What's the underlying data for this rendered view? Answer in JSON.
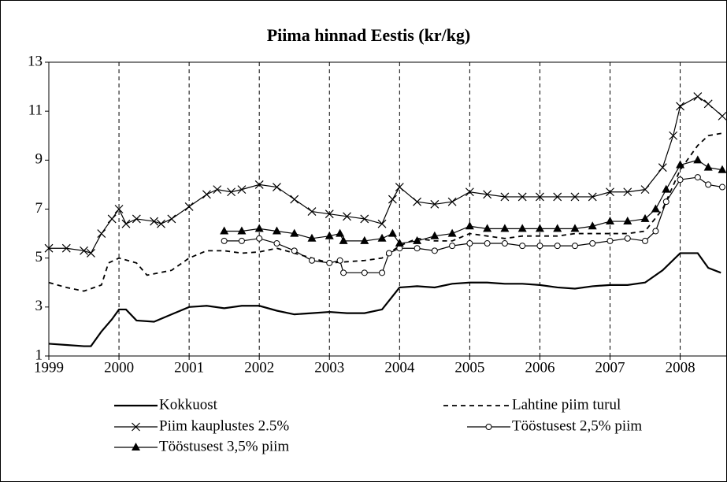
{
  "chart_data": {
    "type": "line",
    "title": "Piima hinnad Eestis (kr/kg)",
    "xlim": [
      1999,
      2008.6
    ],
    "xticks": [
      1999,
      2000,
      2001,
      2002,
      2003,
      2004,
      2005,
      2006,
      2007,
      2008
    ],
    "ylim": [
      1,
      13
    ],
    "yticks": [
      1,
      3,
      5,
      7,
      9,
      11,
      13
    ],
    "grid": "x",
    "legend": "bottom",
    "series": [
      {
        "name": "Kokkuost",
        "color": "#000000",
        "dash": "solid",
        "marker": "none",
        "x": [
          1999.0,
          1999.25,
          1999.5,
          1999.6,
          1999.75,
          1999.9,
          2000.0,
          2000.1,
          2000.25,
          2000.5,
          2000.75,
          2001.0,
          2001.25,
          2001.5,
          2001.75,
          2002.0,
          2002.25,
          2002.5,
          2002.75,
          2003.0,
          2003.25,
          2003.5,
          2003.75,
          2004.0,
          2004.25,
          2004.5,
          2004.75,
          2005.0,
          2005.25,
          2005.5,
          2005.75,
          2006.0,
          2006.25,
          2006.5,
          2006.75,
          2007.0,
          2007.25,
          2007.5,
          2007.75,
          2008.0,
          2008.25,
          2008.4,
          2008.58
        ],
        "values": [
          1.5,
          1.45,
          1.4,
          1.4,
          2.0,
          2.5,
          2.9,
          2.9,
          2.45,
          2.4,
          2.7,
          3.0,
          3.05,
          2.95,
          3.05,
          3.05,
          2.85,
          2.7,
          2.75,
          2.8,
          2.75,
          2.75,
          2.9,
          3.8,
          3.85,
          3.8,
          3.95,
          4.0,
          4.0,
          3.95,
          3.95,
          3.9,
          3.8,
          3.75,
          3.85,
          3.9,
          3.9,
          4.0,
          4.5,
          5.2,
          5.2,
          4.6,
          4.4
        ]
      },
      {
        "name": "Lahtine piim turul",
        "color": "#000000",
        "dash": "dashed",
        "marker": "none",
        "x": [
          1999.0,
          1999.25,
          1999.5,
          1999.75,
          1999.85,
          2000.0,
          2000.25,
          2000.4,
          2000.75,
          2001.0,
          2001.25,
          2001.5,
          2001.75,
          2002.0,
          2002.25,
          2002.5,
          2002.75,
          2003.0,
          2003.25,
          2003.5,
          2003.75,
          2004.0,
          2004.25,
          2004.5,
          2004.75,
          2005.0,
          2005.25,
          2005.5,
          2005.75,
          2006.0,
          2006.25,
          2006.5,
          2006.75,
          2007.0,
          2007.25,
          2007.5,
          2007.75,
          2008.0,
          2008.25,
          2008.4,
          2008.6
        ],
        "values": [
          4.0,
          3.8,
          3.65,
          3.9,
          4.8,
          5.0,
          4.8,
          4.3,
          4.5,
          5.0,
          5.3,
          5.3,
          5.2,
          5.25,
          5.4,
          5.2,
          5.0,
          4.8,
          4.85,
          4.9,
          5.0,
          5.5,
          5.8,
          5.7,
          5.7,
          6.0,
          5.9,
          5.8,
          5.9,
          5.9,
          5.9,
          6.0,
          6.0,
          6.0,
          6.0,
          6.1,
          7.0,
          8.6,
          9.6,
          10.0,
          10.1
        ]
      },
      {
        "name": "Piim kauplustes 2.5%",
        "color": "#000000",
        "dash": "solid",
        "marker": "cross",
        "x": [
          1999.0,
          1999.25,
          1999.5,
          1999.6,
          1999.75,
          1999.9,
          2000.0,
          2000.1,
          2000.25,
          2000.5,
          2000.6,
          2000.75,
          2001.0,
          2001.25,
          2001.4,
          2001.6,
          2001.75,
          2002.0,
          2002.25,
          2002.5,
          2002.75,
          2003.0,
          2003.25,
          2003.5,
          2003.75,
          2003.9,
          2004.0,
          2004.25,
          2004.5,
          2004.75,
          2005.0,
          2005.25,
          2005.5,
          2005.75,
          2006.0,
          2006.25,
          2006.5,
          2006.75,
          2007.0,
          2007.25,
          2007.5,
          2007.75,
          2007.9,
          2008.0,
          2008.25,
          2008.4,
          2008.6
        ],
        "values": [
          5.4,
          5.4,
          5.3,
          5.2,
          6.0,
          6.6,
          7.0,
          6.4,
          6.6,
          6.5,
          6.4,
          6.6,
          7.1,
          7.6,
          7.8,
          7.7,
          7.8,
          8.0,
          7.9,
          7.4,
          6.9,
          6.8,
          6.7,
          6.6,
          6.4,
          7.4,
          7.9,
          7.3,
          7.2,
          7.3,
          7.7,
          7.6,
          7.5,
          7.5,
          7.5,
          7.5,
          7.5,
          7.5,
          7.7,
          7.7,
          7.8,
          8.7,
          10.0,
          11.2,
          11.6,
          11.3,
          10.8
        ]
      },
      {
        "name": "Tööstusest 2,5% piim",
        "color": "#000000",
        "dash": "solid",
        "marker": "circle",
        "x": [
          2001.5,
          2001.75,
          2002.0,
          2002.25,
          2002.5,
          2002.75,
          2003.0,
          2003.15,
          2003.2,
          2003.5,
          2003.75,
          2003.85,
          2004.0,
          2004.25,
          2004.5,
          2004.75,
          2005.0,
          2005.25,
          2005.5,
          2005.75,
          2006.0,
          2006.25,
          2006.5,
          2006.75,
          2007.0,
          2007.25,
          2007.5,
          2007.65,
          2007.8,
          2008.0,
          2008.25,
          2008.4,
          2008.6
        ],
        "values": [
          5.7,
          5.7,
          5.8,
          5.6,
          5.3,
          4.9,
          4.8,
          4.9,
          4.4,
          4.4,
          4.4,
          5.2,
          5.4,
          5.4,
          5.3,
          5.5,
          5.6,
          5.6,
          5.6,
          5.5,
          5.5,
          5.5,
          5.5,
          5.6,
          5.7,
          5.8,
          5.7,
          6.1,
          7.3,
          8.2,
          8.3,
          8.0,
          7.9
        ]
      },
      {
        "name": "Tööstusest 3,5% piim",
        "color": "#000000",
        "dash": "solid",
        "marker": "triangle",
        "x": [
          2001.5,
          2001.75,
          2002.0,
          2002.25,
          2002.5,
          2002.75,
          2003.0,
          2003.15,
          2003.2,
          2003.5,
          2003.75,
          2003.9,
          2004.0,
          2004.25,
          2004.5,
          2004.75,
          2005.0,
          2005.25,
          2005.5,
          2005.75,
          2006.0,
          2006.25,
          2006.5,
          2006.75,
          2007.0,
          2007.25,
          2007.5,
          2007.65,
          2007.8,
          2008.0,
          2008.25,
          2008.4,
          2008.6
        ],
        "values": [
          6.1,
          6.1,
          6.2,
          6.1,
          6.0,
          5.8,
          5.9,
          6.0,
          5.7,
          5.7,
          5.8,
          6.0,
          5.6,
          5.7,
          5.9,
          6.0,
          6.3,
          6.2,
          6.2,
          6.2,
          6.2,
          6.2,
          6.2,
          6.3,
          6.5,
          6.5,
          6.6,
          7.0,
          7.8,
          8.8,
          9.0,
          8.7,
          8.6
        ]
      }
    ]
  }
}
